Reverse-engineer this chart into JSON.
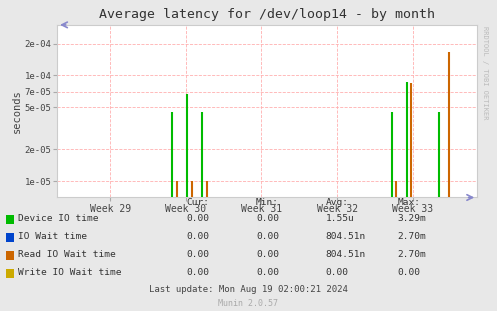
{
  "title": "Average latency for /dev/loop14 - by month",
  "ylabel": "seconds",
  "background_color": "#e8e8e8",
  "plot_background": "#ffffff",
  "grid_color": "#ffb0b0",
  "grid_color_minor": "#e8e8e8",
  "x_ticks": [
    29,
    30,
    31,
    32,
    33
  ],
  "x_tick_labels": [
    "Week 29",
    "Week 30",
    "Week 31",
    "Week 32",
    "Week 33"
  ],
  "xlim": [
    28.3,
    33.85
  ],
  "ymin": 7e-06,
  "ymax": 0.0003,
  "series": [
    {
      "name": "Device IO time",
      "color": "#00bb00",
      "data_x": [
        29.82,
        30.02,
        30.22,
        32.72,
        32.92,
        33.35
      ],
      "data_y": [
        4.5e-05,
        6.7e-05,
        4.5e-05,
        4.5e-05,
        8.7e-05,
        4.5e-05
      ]
    },
    {
      "name": "Read IO Wait time",
      "color": "#cc6600",
      "data_x": [
        29.88,
        30.08,
        30.28,
        32.78,
        32.98,
        33.48
      ],
      "data_y": [
        1e-05,
        1e-05,
        1e-05,
        1e-05,
        8.5e-05,
        0.000165
      ]
    }
  ],
  "legend_table": {
    "headers": [
      "",
      "Cur:",
      "Min:",
      "Avg:",
      "Max:"
    ],
    "rows": [
      [
        "Device IO time",
        "0.00",
        "0.00",
        "1.55u",
        "3.29m"
      ],
      [
        "IO Wait time",
        "0.00",
        "0.00",
        "804.51n",
        "2.70m"
      ],
      [
        "Read IO Wait time",
        "0.00",
        "0.00",
        "804.51n",
        "2.70m"
      ],
      [
        "Write IO Wait time",
        "0.00",
        "0.00",
        "0.00",
        "0.00"
      ]
    ],
    "legend_colors": [
      "#00bb00",
      "#0044cc",
      "#cc6600",
      "#ccaa00"
    ]
  },
  "footer": "Last update: Mon Aug 19 02:00:21 2024",
  "munin_version": "Munin 2.0.57",
  "rrdtool_label": "RRDTOOL / TOBI OETIKER",
  "arrow_color": "#8888cc"
}
